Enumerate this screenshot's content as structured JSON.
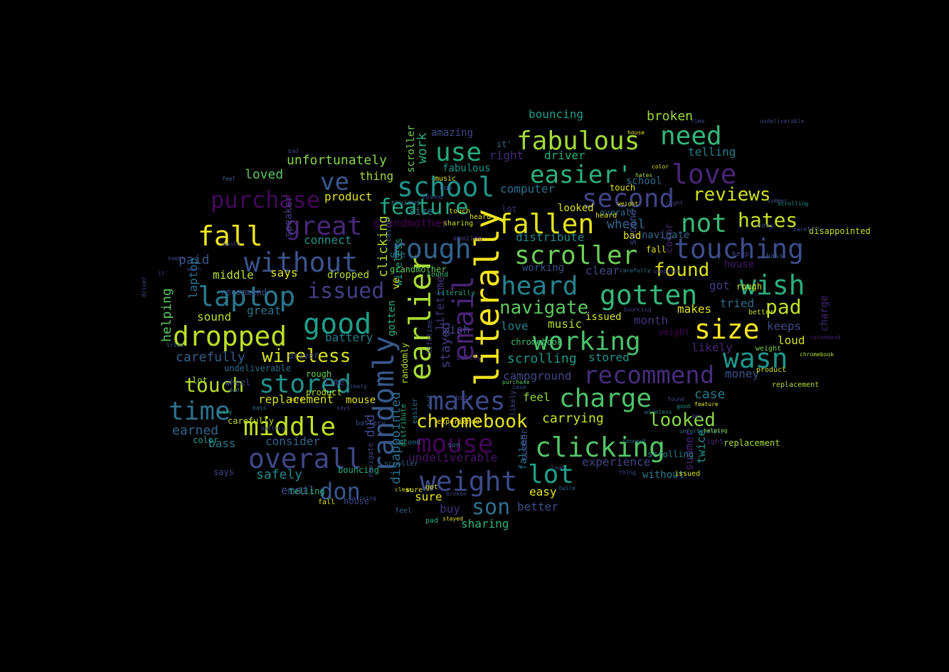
{
  "word_cloud": {
    "background": "#000000",
    "palette": "viridis",
    "words": [
      {
        "text": "literally",
        "color": "#f2e51d"
      },
      {
        "text": "randomly",
        "color": "#38588c"
      },
      {
        "text": "earlier",
        "color": "#a8db34"
      },
      {
        "text": "email",
        "color": "#482475"
      },
      {
        "text": "fabulous",
        "color": "#a2da37"
      },
      {
        "text": "easier'",
        "color": "#2cb17e"
      },
      {
        "text": "love",
        "color": "#482475"
      },
      {
        "text": "need",
        "color": "#34b679"
      },
      {
        "text": "school",
        "color": "#1f958b"
      },
      {
        "text": "use",
        "color": "#25ac82"
      },
      {
        "text": "ve",
        "color": "#38588c"
      },
      {
        "text": "purchase",
        "color": "#46085c"
      },
      {
        "text": "second",
        "color": "#414487"
      },
      {
        "text": "reviews",
        "color": "#d0e11c"
      },
      {
        "text": "feature",
        "color": "#22a785"
      },
      {
        "text": "great",
        "color": "#482878"
      },
      {
        "text": "fallen",
        "color": "#e5e419"
      },
      {
        "text": "fall",
        "color": "#f1e51d"
      },
      {
        "text": "not",
        "color": "#3aba76"
      },
      {
        "text": "hates",
        "color": "#c8e020"
      },
      {
        "text": "rough",
        "color": "#33638d"
      },
      {
        "text": "touching",
        "color": "#3d4d8a"
      },
      {
        "text": "without",
        "color": "#3b528b"
      },
      {
        "text": "scroller",
        "color": "#6ece58"
      },
      {
        "text": "heard",
        "color": "#26828e"
      },
      {
        "text": "laptop",
        "color": "#2a788e"
      },
      {
        "text": "issued",
        "color": "#433e85"
      },
      {
        "text": "found",
        "color": "#dde318"
      },
      {
        "text": "gotten",
        "color": "#35b779"
      },
      {
        "text": "wish",
        "color": "#29af7f"
      },
      {
        "text": "navigate",
        "color": "#5ec962"
      },
      {
        "text": "good",
        "color": "#1f9e89"
      },
      {
        "text": "pad",
        "color": "#c2df23"
      },
      {
        "text": "dropped",
        "color": "#bddf26"
      },
      {
        "text": "size",
        "color": "#fde725"
      },
      {
        "text": "working",
        "color": "#4ac16d"
      },
      {
        "text": "wasn",
        "color": "#1f968b"
      },
      {
        "text": "wireless",
        "color": "#d8e219"
      },
      {
        "text": "stored",
        "color": "#21918c"
      },
      {
        "text": "recommend",
        "color": "#472d7b"
      },
      {
        "text": "touch",
        "color": "#b5de2b"
      },
      {
        "text": "charge",
        "color": "#4ec36b"
      },
      {
        "text": "time",
        "color": "#2c728e"
      },
      {
        "text": "makes",
        "color": "#3e4989"
      },
      {
        "text": "middle",
        "color": "#c2df23"
      },
      {
        "text": "chromebook",
        "color": "#e7e419"
      },
      {
        "text": "looked",
        "color": "#8bd646"
      },
      {
        "text": "mouse",
        "color": "#450559"
      },
      {
        "text": "clicking",
        "color": "#54c568"
      },
      {
        "text": "overall",
        "color": "#404688"
      },
      {
        "text": "lot",
        "color": "#1fa088"
      },
      {
        "text": "weight",
        "color": "#3e4a89"
      },
      {
        "text": "don",
        "color": "#39568c"
      },
      {
        "text": "son",
        "color": "#2d708e"
      },
      {
        "text": "unfortunately",
        "color": "#84d44b"
      },
      {
        "text": "work",
        "color": "#2ab07f"
      },
      {
        "text": "amazing",
        "color": "#3f4788"
      },
      {
        "text": "bouncing",
        "color": "#1e9b8a"
      },
      {
        "text": "broken",
        "color": "#a0da39"
      },
      {
        "text": "telling",
        "color": "#287d8e"
      },
      {
        "text": "loved",
        "color": "#5ac864"
      },
      {
        "text": "thing",
        "color": "#9fda3a"
      },
      {
        "text": "product",
        "color": "#e2e418"
      },
      {
        "text": "computer",
        "color": "#2d718e"
      },
      {
        "text": "wheel",
        "color": "#31688e"
      },
      {
        "text": "driver",
        "color": "#26ad81"
      },
      {
        "text": "right",
        "color": "#482979"
      },
      {
        "text": "grandmother",
        "color": "#440154"
      },
      {
        "text": "distribute",
        "color": "#228c8d"
      },
      {
        "text": "paid",
        "color": "#3b518b"
      },
      {
        "text": "says",
        "color": "#dfe318"
      },
      {
        "text": "middle",
        "color": "#b8de29"
      },
      {
        "text": "connect",
        "color": "#20928c"
      },
      {
        "text": "carefully",
        "color": "#355f8d"
      },
      {
        "text": "sound",
        "color": "#bade28"
      },
      {
        "text": "great",
        "color": "#2a768e"
      },
      {
        "text": "battery",
        "color": "#277f8e"
      },
      {
        "text": "replacement",
        "color": "#d5e21a"
      },
      {
        "text": "campground",
        "color": "#3f4889"
      },
      {
        "text": "carrying",
        "color": "#cae11f"
      },
      {
        "text": "case",
        "color": "#287c8e"
      },
      {
        "text": "feel",
        "color": "#8ed645"
      },
      {
        "text": "bass",
        "color": "#2a788e"
      },
      {
        "text": "earned",
        "color": "#31678e"
      },
      {
        "text": "consider",
        "color": "#33638d"
      },
      {
        "text": "safely",
        "color": "#23898e"
      },
      {
        "text": "undeliverable",
        "color": "#481769"
      },
      {
        "text": "experience",
        "color": "#414487"
      },
      {
        "text": "email",
        "color": "#3e4c8a"
      },
      {
        "text": "buy",
        "color": "#46327e"
      },
      {
        "text": "better",
        "color": "#3c508b"
      },
      {
        "text": "sharing",
        "color": "#2db27d"
      },
      {
        "text": "easy",
        "color": "#e5e419"
      },
      {
        "text": "sure",
        "color": "#e7e419"
      },
      {
        "text": "scrolling",
        "color": "#1f9a8a"
      },
      {
        "text": "money",
        "color": "#3b528b"
      },
      {
        "text": "keeps",
        "color": "#3f4889"
      },
      {
        "text": "loud",
        "color": "#d2e21b"
      },
      {
        "text": "likely",
        "color": "#482576"
      },
      {
        "text": "tried",
        "color": "#2e6e8e"
      },
      {
        "text": "makes",
        "color": "#e0e318"
      },
      {
        "text": "got",
        "color": "#433e85"
      },
      {
        "text": "month",
        "color": "#46327e"
      },
      {
        "text": "stored",
        "color": "#20928c"
      },
      {
        "text": "twice",
        "color": "#21918c"
      },
      {
        "text": "summer",
        "color": "#482173"
      },
      {
        "text": "wish",
        "color": "#404688"
      },
      {
        "text": "clear",
        "color": "#3e4a89"
      },
      {
        "text": "music",
        "color": "#b2dd2d"
      },
      {
        "text": "love",
        "color": "#26828e"
      },
      {
        "text": "bad",
        "color": "#e8e419"
      },
      {
        "text": "school",
        "color": "#2e6f8e"
      },
      {
        "text": "lifetime",
        "color": "#46327e"
      },
      {
        "text": "stayed",
        "color": "#433d84"
      },
      {
        "text": "disappointed",
        "color": "#2d708e"
      },
      {
        "text": "dud",
        "color": "#3e4989"
      },
      {
        "text": "helping",
        "color": "#5cc863"
      },
      {
        "text": "clicking",
        "color": "#b5de2b"
      },
      {
        "text": "scroller",
        "color": "#73d056"
      },
      {
        "text": "color",
        "color": "#482677"
      },
      {
        "text": "charge",
        "color": "#482677"
      },
      {
        "text": "speaker",
        "color": "#433d84"
      },
      {
        "text": "working",
        "color": "#3b528b"
      },
      {
        "text": "size",
        "color": "#2c728e"
      },
      {
        "text": "fabulous",
        "color": "#1f988b"
      },
      {
        "text": "it'",
        "color": "#32658e"
      },
      {
        "text": "house",
        "color": "#481a6c"
      },
      {
        "text": "issued",
        "color": "#d2e21b"
      },
      {
        "text": "weight",
        "color": "#440154"
      },
      {
        "text": "rough",
        "color": "#d0e11c"
      },
      {
        "text": "without",
        "color": "#287d8e"
      },
      {
        "text": "fallen",
        "color": "#2a788e"
      },
      {
        "text": "wireless",
        "color": "#1fa088"
      },
      {
        "text": "mouse",
        "color": "#e2e418"
      },
      {
        "text": "gotten",
        "color": "#2ab07f"
      },
      {
        "text": "randomly",
        "color": "#b5de2b"
      },
      {
        "text": "ve",
        "color": "#e5e419"
      },
      {
        "text": "dropped",
        "color": "#b5de2b"
      },
      {
        "text": "looked",
        "color": "#e0e318"
      },
      {
        "text": "laptop",
        "color": "#2c728e"
      },
      {
        "text": "disappointed",
        "color": "#c2df23"
      },
      {
        "text": "overall",
        "color": "#2f6c8e"
      },
      {
        "text": "easier",
        "color": "#3b528b"
      },
      {
        "text": "use",
        "color": "#287c8e"
      },
      {
        "text": "heard",
        "color": "#dfe318"
      },
      {
        "text": "touch",
        "color": "#e8e419"
      },
      {
        "text": "navigate",
        "color": "#31688e"
      },
      {
        "text": "second",
        "color": "#3e4a89"
      },
      {
        "text": "fall",
        "color": "#e2e418"
      },
      {
        "text": "lot",
        "color": "#46327e"
      },
      {
        "text": "grandmother",
        "color": "#65cb5e"
      },
      {
        "text": "recommend",
        "color": "#3b528b"
      },
      {
        "text": "chromebook",
        "color": "#4ac16d"
      },
      {
        "text": "product",
        "color": "#bddf26"
      },
      {
        "text": "replacement",
        "color": "#a8db34"
      },
      {
        "text": "summer",
        "color": "#3e4989"
      },
      {
        "text": "scrolling",
        "color": "#287d8e"
      },
      {
        "text": "issued",
        "color": "#dfe318"
      },
      {
        "text": "right",
        "color": "#482979"
      },
      {
        "text": "weight",
        "color": "#7ad151"
      },
      {
        "text": "driver",
        "color": "#3f4889"
      },
      {
        "text": "wheel",
        "color": "#3e4a89"
      },
      {
        "text": "time",
        "color": "#3f4788"
      },
      {
        "text": "lot",
        "color": "#a0da39"
      },
      {
        "text": "undeliverable",
        "color": "#2e6f8e"
      },
      {
        "text": "color",
        "color": "#1fa088"
      },
      {
        "text": "telling",
        "color": "#29af7f"
      },
      {
        "text": "house",
        "color": "#3e4989"
      },
      {
        "text": "bouncing",
        "color": "#27ad81"
      },
      {
        "text": "carefully",
        "color": "#bddf26"
      },
      {
        "text": "says",
        "color": "#3f4889"
      },
      {
        "text": "rough",
        "color": "#6ece58"
      },
      {
        "text": "fall",
        "color": "#dfe318"
      },
      {
        "text": "got",
        "color": "#dde318"
      },
      {
        "text": "likely",
        "color": "#3e4989"
      },
      {
        "text": "feel",
        "color": "#31688e"
      },
      {
        "text": "sure",
        "color": "#e5e419"
      },
      {
        "text": "dud",
        "color": "#3b528b"
      },
      {
        "text": "battery",
        "color": "#3b528b"
      },
      {
        "text": "scroller",
        "color": "#31688e"
      },
      {
        "text": "easier",
        "color": "#2c728e"
      },
      {
        "text": "navigate",
        "color": "#414487"
      },
      {
        "text": "second",
        "color": "#2a788e"
      },
      {
        "text": "pad",
        "color": "#2ab07f"
      },
      {
        "text": "distribute",
        "color": "#2cb17e"
      },
      {
        "text": "experience",
        "color": "#fde725"
      },
      {
        "text": "son",
        "color": "#31688e"
      },
      {
        "text": "paid",
        "color": "#404688"
      },
      {
        "text": "safely",
        "color": "#46327e"
      },
      {
        "text": "lifetime",
        "color": "#414487"
      },
      {
        "text": "sound",
        "color": "#3aba76"
      },
      {
        "text": "literally",
        "color": "#22a785"
      },
      {
        "text": "reviews",
        "color": "#2a788e"
      },
      {
        "text": "sharing",
        "color": "#c8e020"
      },
      {
        "text": "music",
        "color": "#dfe318"
      },
      {
        "text": "amazing",
        "color": "#46327e"
      },
      {
        "text": "heard",
        "color": "#e5e419"
      },
      {
        "text": "touch",
        "color": "#dde318"
      },
      {
        "text": "loved",
        "color": "#3e4989"
      },
      {
        "text": "buy",
        "color": "#3b528b"
      },
      {
        "text": "easy",
        "color": "#3f4889"
      },
      {
        "text": "bass",
        "color": "#3b528b"
      },
      {
        "text": "keeps",
        "color": "#433e85"
      },
      {
        "text": "better",
        "color": "#c2df23"
      },
      {
        "text": "product",
        "color": "#d8e219"
      },
      {
        "text": "replacement",
        "color": "#b5de2b"
      },
      {
        "text": "chromebook",
        "color": "#b2dd2d"
      },
      {
        "text": "recommend",
        "color": "#482173"
      },
      {
        "text": "scrolling",
        "color": "#1f968b"
      },
      {
        "text": "summer",
        "color": "#3b528b"
      },
      {
        "text": "right",
        "color": "#414487"
      },
      {
        "text": "house",
        "color": "#e2e418"
      },
      {
        "text": "color",
        "color": "#e8e419"
      },
      {
        "text": "weight",
        "color": "#e2e418"
      },
      {
        "text": "hates",
        "color": "#a8db34"
      },
      {
        "text": "time",
        "color": "#3e4a89"
      },
      {
        "text": "undeliverable",
        "color": "#414487"
      },
      {
        "text": "computer",
        "color": "#433e85"
      },
      {
        "text": "bouncing",
        "color": "#433e85"
      },
      {
        "text": "carefully",
        "color": "#2a788e"
      },
      {
        "text": "feature",
        "color": "#e8e419"
      },
      {
        "text": "good",
        "color": "#1f988b"
      },
      {
        "text": "unfortunately",
        "color": "#2a788e"
      },
      {
        "text": "helping",
        "color": "#8bd646"
      },
      {
        "text": "don",
        "color": "#3e4989"
      },
      {
        "text": "found",
        "color": "#3f4788"
      },
      {
        "text": "case",
        "color": "#3b528b"
      },
      {
        "text": "purchase",
        "color": "#5ec962"
      },
      {
        "text": "loud",
        "color": "#3b528b"
      },
      {
        "text": "twice",
        "color": "#31688e"
      },
      {
        "text": "thing",
        "color": "#3e4989"
      },
      {
        "text": "connect",
        "color": "#2a788e"
      },
      {
        "text": "wireless",
        "color": "#26828e"
      },
      {
        "text": "stayed",
        "color": "#e0e318"
      },
      {
        "text": "broken",
        "color": "#3f4889"
      },
      {
        "text": "clear",
        "color": "#e2e418"
      },
      {
        "text": "carrying",
        "color": "#3e4989"
      },
      {
        "text": "says",
        "color": "#414487"
      },
      {
        "text": "likely",
        "color": "#3b528b"
      },
      {
        "text": "bad",
        "color": "#414487"
      },
      {
        "text": "feel",
        "color": "#33638d"
      },
      {
        "text": "sure",
        "color": "#fde725"
      },
      {
        "text": "battery",
        "color": "#3e4989"
      },
      {
        "text": "dud",
        "color": "#31688e"
      },
      {
        "text": "easy",
        "color": "#22a785"
      },
      {
        "text": "bass",
        "color": "#2c728e"
      },
      {
        "text": "tried",
        "color": "#31688e"
      },
      {
        "text": "it'",
        "color": "#433e85"
      },
      {
        "text": "driver",
        "color": "#3b528b"
      },
      {
        "text": "keeps",
        "color": "#414487"
      },
      {
        "text": "wasn",
        "color": "#3e4989"
      },
      {
        "text": "month",
        "color": "#3f4889"
      },
      {
        "text": "carefully",
        "color": "#3b528b"
      }
    ]
  }
}
